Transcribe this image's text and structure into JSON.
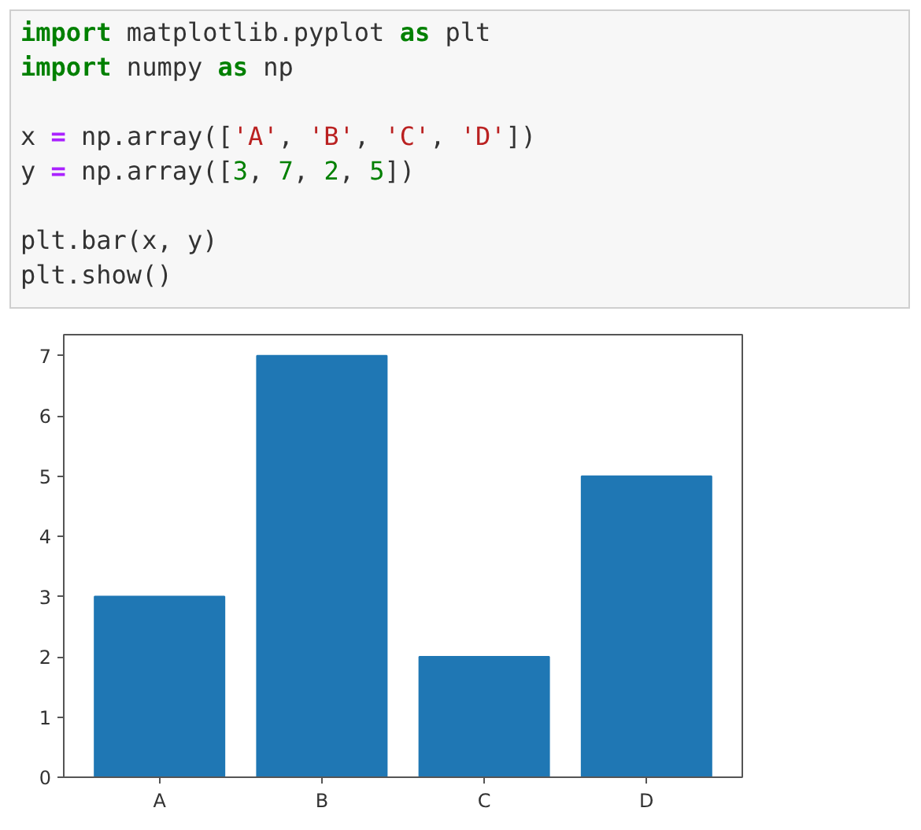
{
  "chart_data": {
    "type": "bar",
    "annotations": [
      "import matplotlib.pyplot as plt\nimport numpy as np",
      "x = np.array(['A', 'B', 'C', 'D'])\ny = np.array([3, 7, 2, 5])",
      "plt.bar(x, y)\nplt.show()"
    ],
    "categories": [
      "A",
      "B",
      "C",
      "D"
    ],
    "values": [
      3,
      7,
      2,
      5
    ],
    "color": "#1f77b4",
    "ylim": [
      0,
      7.35
    ],
    "yticks": [
      0,
      1,
      2,
      3,
      4,
      5,
      6,
      7
    ]
  }
}
